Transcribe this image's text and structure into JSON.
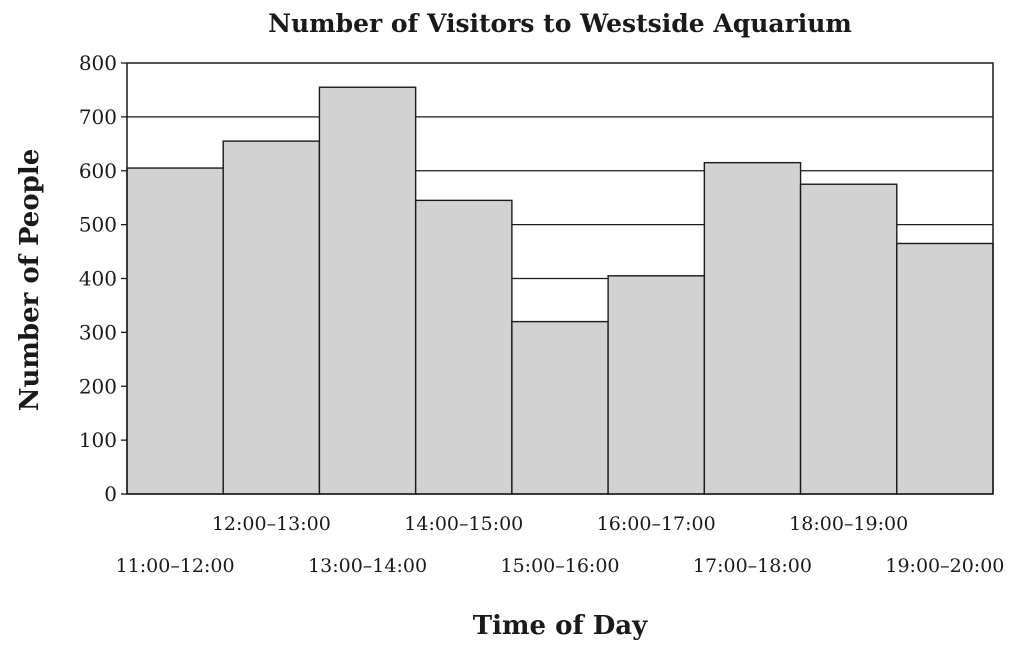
{
  "chart_data": {
    "type": "bar",
    "title": "Number of Visitors to Westside Aquarium",
    "xlabel": "Time of Day",
    "ylabel": "Number of People",
    "categories": [
      "11:00–12:00",
      "12:00–13:00",
      "13:00–14:00",
      "14:00–15:00",
      "15:00–16:00",
      "16:00–17:00",
      "17:00–18:00",
      "18:00–19:00",
      "19:00–20:00"
    ],
    "values": [
      605,
      655,
      755,
      545,
      320,
      405,
      615,
      575,
      465
    ],
    "ylim": [
      0,
      800
    ],
    "yticks": [
      0,
      100,
      200,
      300,
      400,
      500,
      600,
      700,
      800
    ],
    "grid": "horizontal",
    "bar_color": "#d2d2d2",
    "edge_color": "#1a1a1a"
  }
}
